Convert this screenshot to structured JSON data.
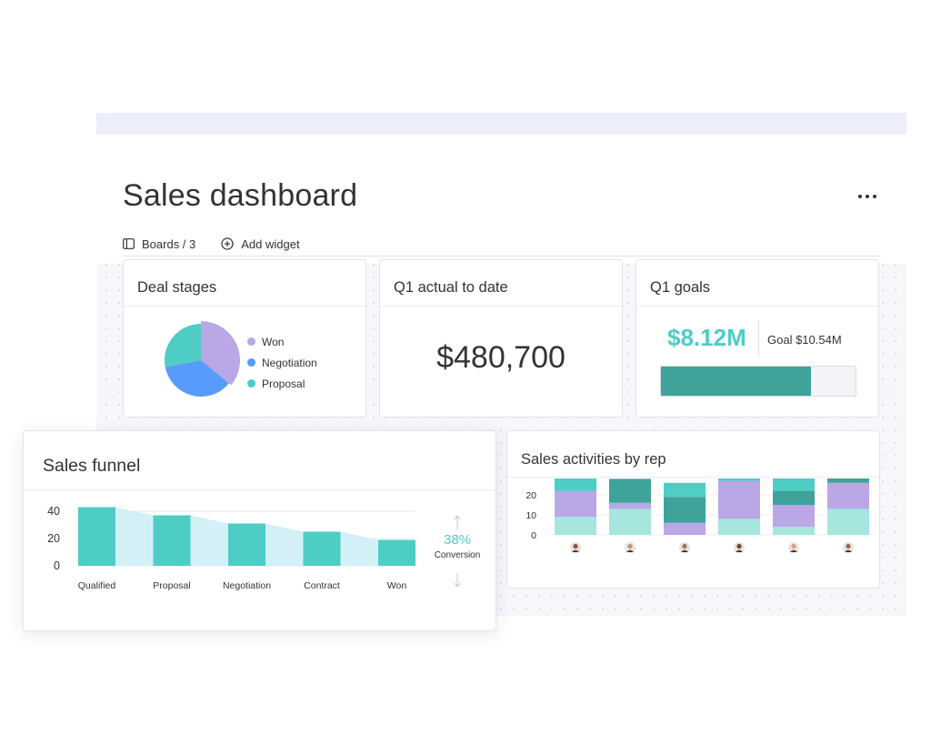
{
  "page": {
    "title": "Sales dashboard"
  },
  "toolbar": {
    "boards_label": "Boards / 3",
    "add_widget_label": "Add widget"
  },
  "colors": {
    "teal": "#4ecdc4",
    "dark_teal": "#3fa39a",
    "lavender": "#b9a7e6",
    "blue": "#579bfc",
    "light_teal": "#a6e6df",
    "funnel_fill": "#d4f0f7"
  },
  "widgets": {
    "deal_stages": {
      "title": "Deal stages",
      "legend": [
        {
          "label": "Won",
          "color": "#b9a7e6"
        },
        {
          "label": "Negotiation",
          "color": "#579bfc"
        },
        {
          "label": "Proposal",
          "color": "#4ecdc4"
        }
      ]
    },
    "q1_actual": {
      "title": "Q1 actual to date",
      "value": "$480,700"
    },
    "q1_goals": {
      "title": "Q1 goals",
      "value": "$8.12M",
      "goal_label": "Goal $10.54M",
      "progress": 0.77
    },
    "sales_funnel": {
      "title": "Sales funnel",
      "conversion_value": "38%",
      "conversion_label": "Conversion"
    },
    "sales_activities": {
      "title": "Sales activities by rep"
    }
  },
  "chart_data": [
    {
      "type": "pie",
      "categories": [
        "Won",
        "Negotiation",
        "Proposal"
      ],
      "values": [
        36,
        36,
        28
      ],
      "colors": [
        "#b9a7e6",
        "#579bfc",
        "#4ecdc4"
      ]
    },
    {
      "type": "bar",
      "categories": [
        "Qualified",
        "Proposal",
        "Negotiation",
        "Contract",
        "Won"
      ],
      "values": [
        43,
        37,
        31,
        25,
        19
      ],
      "ylim": [
        0,
        45
      ],
      "yticks": [
        0,
        20,
        40
      ],
      "grid": true
    },
    {
      "type": "bar",
      "stacked": true,
      "categories": [
        "rep-1",
        "rep-2",
        "rep-3",
        "rep-4",
        "rep-5",
        "rep-6"
      ],
      "ylim": [
        0,
        30
      ],
      "yticks": [
        0,
        10,
        20,
        30
      ],
      "series": [
        {
          "color": "#a6e6df",
          "values": [
            9,
            13,
            0,
            8,
            4,
            13
          ]
        },
        {
          "color": "#b9a7e6",
          "values": [
            13,
            3,
            6,
            19,
            11,
            13
          ]
        },
        {
          "color": "#3fa39a",
          "values": [
            0,
            12,
            13,
            0,
            7,
            3
          ]
        },
        {
          "color": "#4ecdc4",
          "values": [
            7,
            0,
            7,
            7,
            8,
            0
          ]
        }
      ]
    }
  ]
}
